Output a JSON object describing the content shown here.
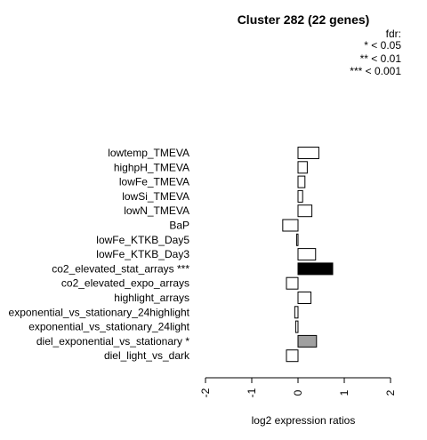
{
  "chart_data": {
    "type": "bar",
    "orientation": "horizontal",
    "title": "Cluster 282 (22 genes)",
    "xlabel": "log2 expression ratios",
    "ylabel": "",
    "xlim": [
      -2,
      2
    ],
    "xticks": [
      "-2",
      "-1",
      "0",
      "1",
      "2"
    ],
    "legend": {
      "title": "fdr:",
      "entries": [
        "* < 0.05",
        "** < 0.01",
        "*** < 0.001"
      ]
    },
    "categories": [
      "lowtemp_TMEVA",
      "highpH_TMEVA",
      "lowFe_TMEVA",
      "lowSi_TMEVA",
      "lowN_TMEVA",
      "BaP",
      "lowFe_KTKB_Day5",
      "lowFe_KTKB_Day3",
      "co2_elevated_stat_arrays ***",
      "co2_elevated_expo_arrays",
      "highlight_arrays",
      "exponential_vs_stationary_24highlight",
      "exponential_vs_stationary_24light",
      "diel_exponential_vs_stationary *",
      "diel_light_vs_dark"
    ],
    "values": [
      0.45,
      0.2,
      0.15,
      0.1,
      0.3,
      -0.33,
      -0.03,
      0.38,
      0.75,
      -0.25,
      0.28,
      -0.07,
      -0.05,
      0.4,
      -0.25
    ],
    "fills": [
      "#ffffff",
      "#ffffff",
      "#ffffff",
      "#ffffff",
      "#ffffff",
      "#ffffff",
      "#ffffff",
      "#ffffff",
      "#000000",
      "#ffffff",
      "#ffffff",
      "#ffffff",
      "#ffffff",
      "#a0a0a0",
      "#ffffff"
    ]
  }
}
